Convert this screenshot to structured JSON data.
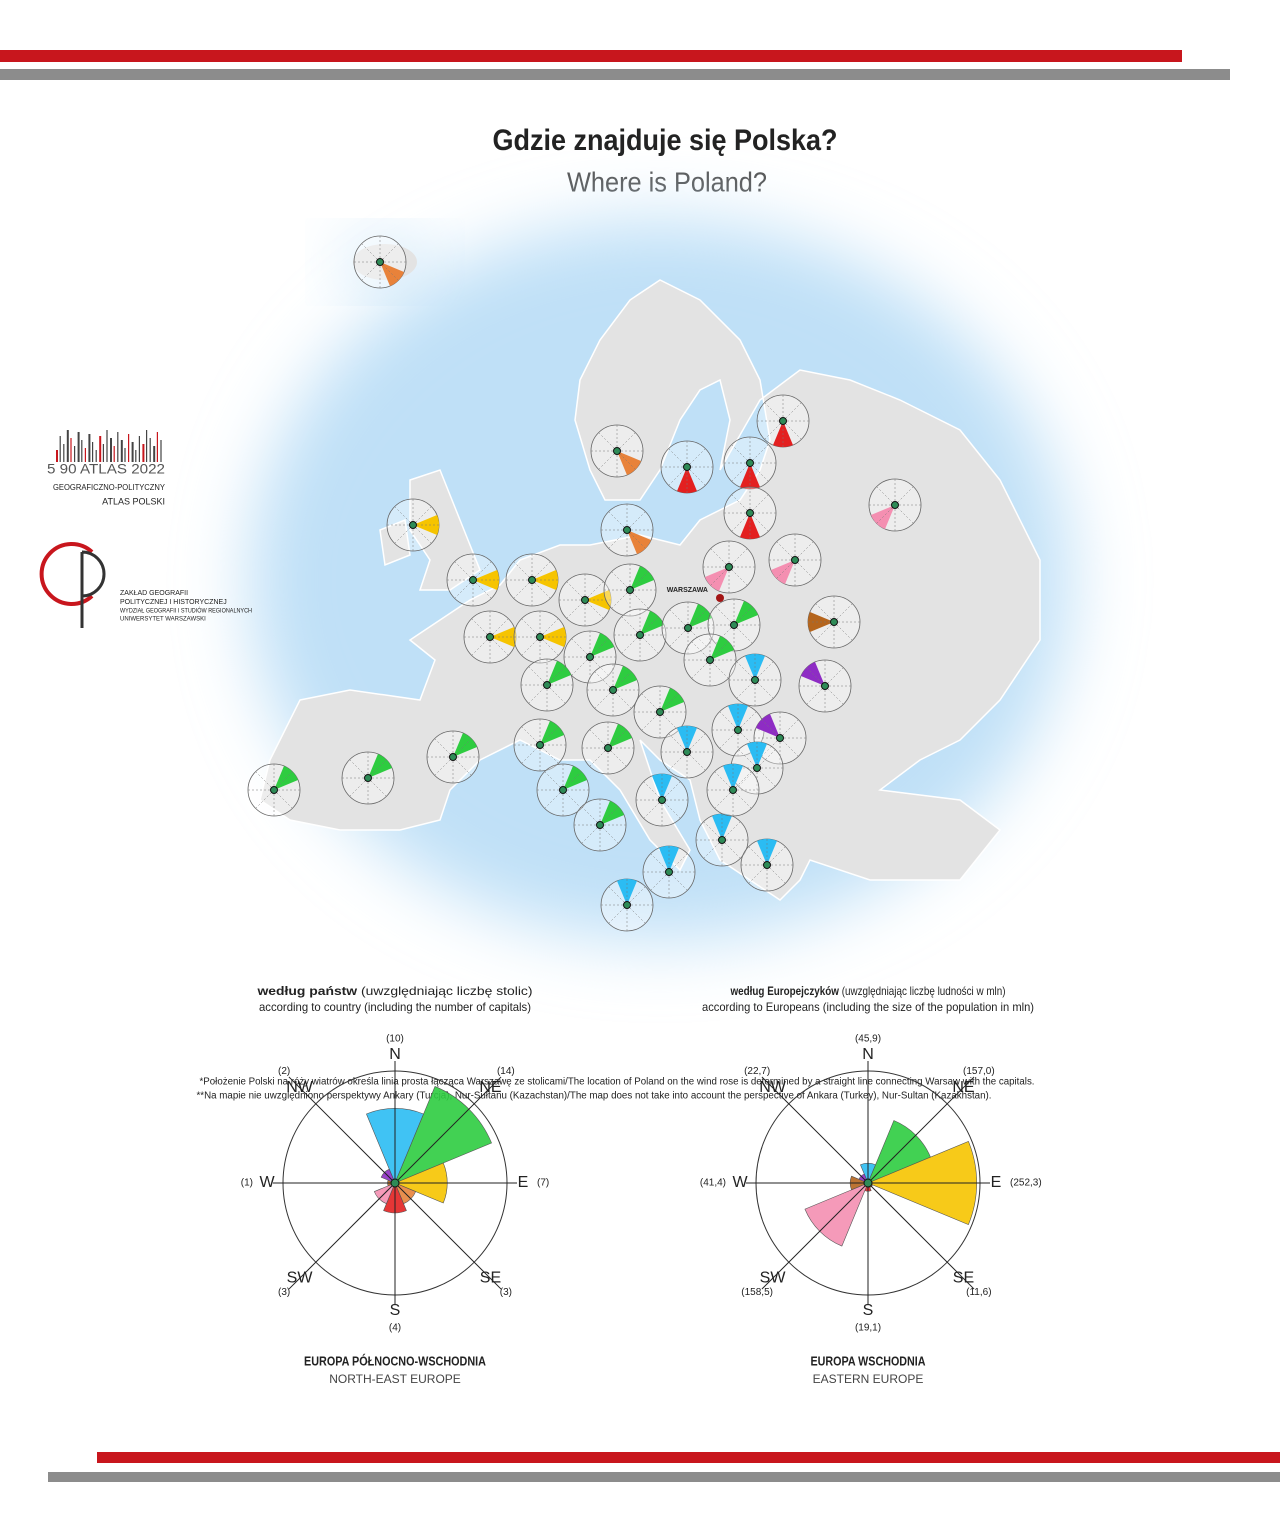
{
  "header": {
    "title": "Gdzie znajduje się Polska?",
    "subtitle": "Where is Poland?"
  },
  "atlas_logo": {
    "lines": [
      "5 90 ATLAS 2022",
      "GEOGRAFICZNO-POLITYCZNY",
      "ATLAS POLSKI"
    ]
  },
  "institute_logo": {
    "lines": [
      "ZAKŁAD GEOGRAFII",
      "POLITYCZNEJ I HISTORYCZNEJ",
      "WYDZIAŁ GEOGRAFII I STUDIÓW REGIONALNYCH",
      "UNIWERSYTET WARSZAWSKI"
    ]
  },
  "map": {
    "marker_label": "WARSZAWA"
  },
  "chart_data": [
    {
      "type": "rose",
      "title_bold": "według państw",
      "title_note": "(uwzględniając liczbę stolic)",
      "subtitle": "according to country (including the number of capitals)",
      "categories": [
        "N",
        "NE",
        "E",
        "SE",
        "S",
        "SW",
        "W",
        "NW"
      ],
      "values": [
        10,
        14,
        7,
        3,
        4,
        3,
        1,
        2
      ],
      "value_labels": [
        "(10)",
        "(14)",
        "(7)",
        "(3)",
        "(4)",
        "(3)",
        "(1)",
        "(2)"
      ],
      "colors": [
        "#2bbcf3",
        "#2ecc40",
        "#f6c400",
        "#e8823a",
        "#e32020",
        "#f48fb1",
        "#b5651d",
        "#8e2cc4"
      ],
      "rlim": [
        0,
        15
      ],
      "region": "EUROPA PÓŁNOCNO-WSCHODNIA",
      "region_en": "NORTH-EAST EUROPE"
    },
    {
      "type": "rose",
      "title_bold": "według Europejczyków",
      "title_note": "(uwzględniając liczbę ludności w mln)",
      "subtitle": "according to Europeans (including the size of the population in mln)",
      "categories": [
        "N",
        "NE",
        "E",
        "SE",
        "S",
        "SW",
        "W",
        "NW"
      ],
      "values": [
        45.9,
        157.0,
        252.3,
        11.6,
        19.1,
        158.5,
        41.4,
        22.7
      ],
      "value_labels": [
        "(45,9)",
        "(157,0)",
        "(252,3)",
        "(11,6)",
        "(19,1)",
        "(158,5)",
        "(41,4)",
        "(22,7)"
      ],
      "colors": [
        "#2bbcf3",
        "#2ecc40",
        "#f6c400",
        "#e8823a",
        "#e32020",
        "#f48fb1",
        "#b5651d",
        "#8e2cc4"
      ],
      "rlim": [
        0,
        260
      ],
      "region": "EUROPA WSCHODNIA",
      "region_en": "EASTERN EUROPE"
    }
  ],
  "footnotes": [
    "*Położenie Polski na róży wiatrów określa linia prosta łącząca Warszawę ze stolicami/The location of Poland on the wind rose is determined by a straight line connecting Warsaw with the capitals.",
    "**Na mapie nie uwzględniono perspektywy Ankary (Turcja), Nur-Sułtanu (Kazachstan)/The map does not take into account the perspective of Ankara (Turkey), Nur-Sultan (Kazakhstan)."
  ]
}
